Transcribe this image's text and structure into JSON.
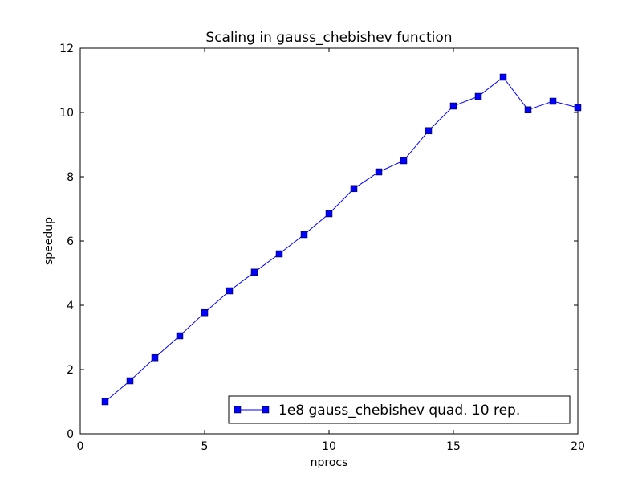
{
  "chart_data": {
    "type": "line",
    "title": "Scaling in gauss_chebishev function",
    "xlabel": "nprocs",
    "ylabel": "speedup",
    "xlim": [
      0,
      20
    ],
    "ylim": [
      0,
      12
    ],
    "xticks": [
      0,
      5,
      10,
      15,
      20
    ],
    "yticks": [
      0,
      2,
      4,
      6,
      8,
      10,
      12
    ],
    "grid": false,
    "legend_position": "lower-right",
    "series": [
      {
        "name": "1e8 gauss_chebishev quad. 10 rep.",
        "color": "#0000ff",
        "marker": "square",
        "x": [
          1,
          2,
          3,
          4,
          5,
          6,
          7,
          8,
          9,
          10,
          11,
          12,
          13,
          14,
          15,
          16,
          17,
          18,
          19,
          20
        ],
        "y": [
          1.0,
          1.65,
          2.37,
          3.05,
          3.77,
          4.45,
          5.03,
          5.6,
          6.2,
          6.85,
          7.63,
          8.15,
          8.5,
          9.43,
          10.2,
          10.5,
          11.1,
          10.08,
          10.35,
          10.15
        ]
      }
    ]
  }
}
